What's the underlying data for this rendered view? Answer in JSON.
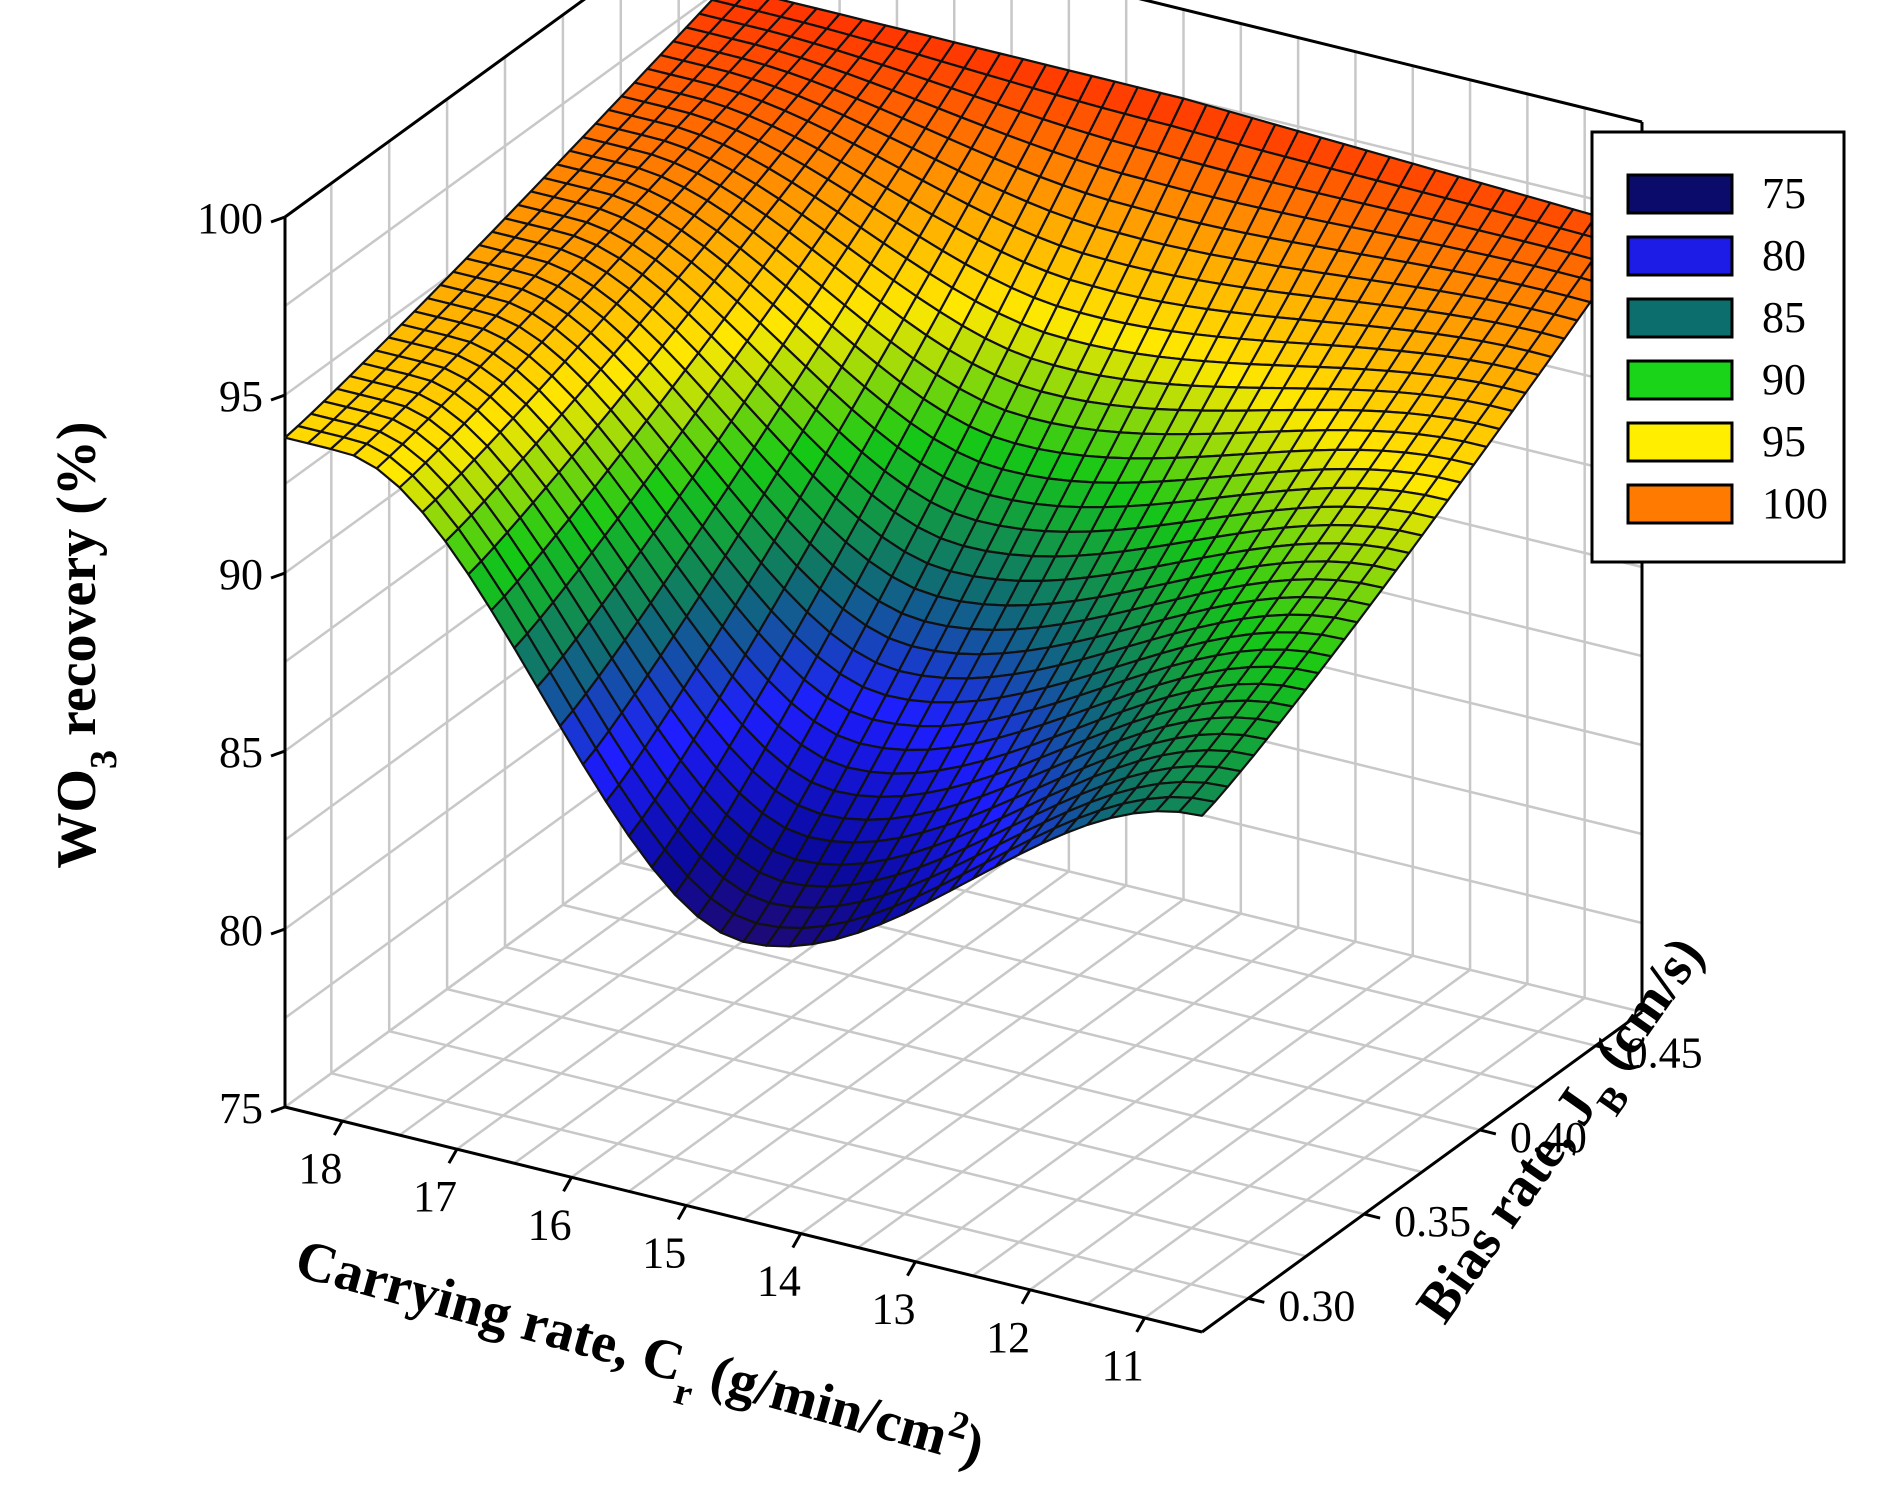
{
  "chart_data": {
    "type": "surface3d",
    "title": "",
    "xlabel": {
      "main": "Carrying rate, C",
      "sub": "r",
      "unit": " (g/min/cm",
      "sup": "2",
      "close": ")"
    },
    "ylabel": {
      "main": "Bias rate, J",
      "sub": "B",
      "unit": " (cm/s)"
    },
    "zlabel": {
      "main": "WO",
      "sub": "3",
      "unit": " recovery (%)"
    },
    "x_ticks": [
      "18",
      "17",
      "16",
      "15",
      "14",
      "13",
      "12",
      "11"
    ],
    "x_range": [
      10.5,
      18.5
    ],
    "y_ticks": [
      "0.30",
      "0.35",
      "0.40",
      "0.45"
    ],
    "y_range": [
      0.28,
      0.47
    ],
    "z_ticks": [
      "75",
      "80",
      "85",
      "90",
      "95",
      "100"
    ],
    "z_range": [
      75,
      100
    ],
    "surface_corners": {
      "cr18_jb0.28": 93.8,
      "cr18_jb0.47": 97.5,
      "cr10.5_jb0.28": 89.5,
      "cr10.5_jb0.47": 97.0,
      "cr14.5_jb0.28": 82.8,
      "cr14.5_jb0.47": 97.5
    },
    "legend": {
      "position": "top-right",
      "items": [
        {
          "label": "75",
          "color": "#0b0b6b"
        },
        {
          "label": "80",
          "color": "#1c1ce6"
        },
        {
          "label": "85",
          "color": "#0d6e6e"
        },
        {
          "label": "90",
          "color": "#19d419"
        },
        {
          "label": "95",
          "color": "#ffee00"
        },
        {
          "label": "100",
          "color": "#ff7a00"
        }
      ]
    },
    "colormap": [
      "#2a0a5e",
      "#0a0aa0",
      "#1e1eff",
      "#0f6f6f",
      "#16c816",
      "#ffe800",
      "#ff8c00",
      "#ff1a00"
    ]
  }
}
